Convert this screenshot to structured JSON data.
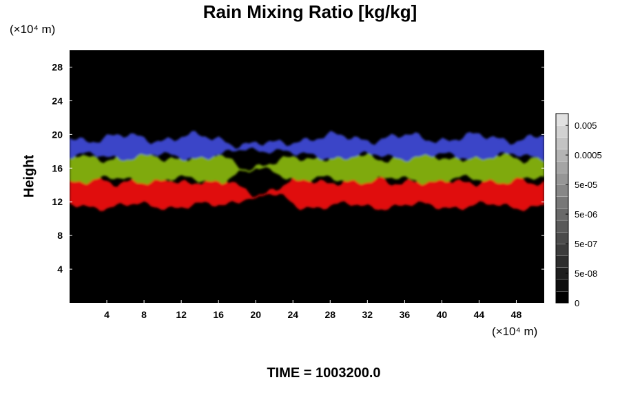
{
  "chart_data": {
    "type": "heatmap",
    "title": "Rain Mixing Ratio [kg/kg]",
    "xlabel": "",
    "ylabel": "Height",
    "x_unit_label": "(×10⁴ m)",
    "y_unit_label": "(×10⁴ m)",
    "xlim": [
      0,
      51
    ],
    "ylim": [
      0,
      30
    ],
    "x_ticks": [
      4,
      8,
      12,
      16,
      20,
      24,
      28,
      32,
      36,
      40,
      44,
      48
    ],
    "y_ticks": [
      4,
      8,
      12,
      16,
      20,
      24,
      28
    ],
    "background_color": "#000000",
    "bands": [
      {
        "color": "#e01010",
        "bottom_base": 11.5,
        "top_base": 14.6
      },
      {
        "color": "#7faa10",
        "bottom_base": 14.6,
        "top_base": 17.4
      },
      {
        "color": "#3a45c8",
        "bottom_base": 17.4,
        "top_base": 19.6
      }
    ],
    "gap_region": {
      "x_from": 16.5,
      "x_to": 24.5
    },
    "colorbar": {
      "tick_labels": [
        "0.005",
        "0.0005",
        "5e-05",
        "5e-06",
        "5e-07",
        "5e-08",
        "0"
      ],
      "colors": [
        "#000000",
        "#0f0f0f",
        "#1e1e1e",
        "#2d2d2d",
        "#3c3c3c",
        "#4b4b4b",
        "#5a5a5a",
        "#696969",
        "#787878",
        "#878787",
        "#969696",
        "#a5a5a5",
        "#b4b4b4",
        "#c3c3c3",
        "#d2d2d2",
        "#e1e1e1"
      ]
    }
  },
  "footer": {
    "time_text": "TIME = 1003200.0"
  }
}
